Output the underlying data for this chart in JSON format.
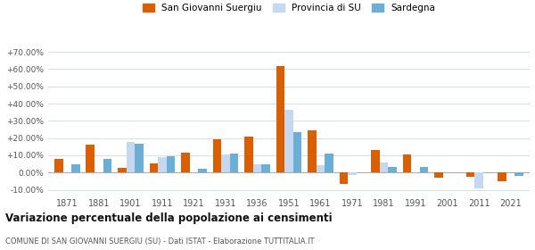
{
  "years": [
    1871,
    1881,
    1901,
    1911,
    1921,
    1931,
    1936,
    1951,
    1961,
    1971,
    1981,
    1991,
    2001,
    2011,
    2021
  ],
  "san_giovanni": [
    8.0,
    16.0,
    2.5,
    5.5,
    11.5,
    19.5,
    21.0,
    62.0,
    24.5,
    -6.5,
    13.0,
    10.5,
    -3.0,
    -2.5,
    -5.0
  ],
  "provincia_su": [
    0.0,
    0.0,
    18.0,
    9.0,
    0.0,
    10.5,
    5.0,
    36.5,
    4.5,
    -1.5,
    6.0,
    0.0,
    0.0,
    -9.0,
    0.0
  ],
  "sardegna": [
    5.0,
    8.0,
    16.5,
    9.5,
    2.0,
    11.0,
    5.0,
    23.5,
    11.0,
    0.0,
    3.5,
    3.5,
    0.0,
    0.0,
    -2.0
  ],
  "color_san_giovanni": "#d95f02",
  "color_provincia": "#c5d8f0",
  "color_sardegna": "#6baed6",
  "title": "Variazione percentuale della popolazione ai censimenti",
  "subtitle": "COMUNE DI SAN GIOVANNI SUERGIU (SU) - Dati ISTAT - Elaborazione TUTTITALIA.IT",
  "ylabel_ticks": [
    -10.0,
    0.0,
    10.0,
    20.0,
    30.0,
    40.0,
    50.0,
    60.0,
    70.0
  ],
  "ylim": [
    -13,
    74
  ],
  "legend_labels": [
    "San Giovanni Suergiu",
    "Provincia di SU",
    "Sardegna"
  ],
  "background_color": "#ffffff"
}
